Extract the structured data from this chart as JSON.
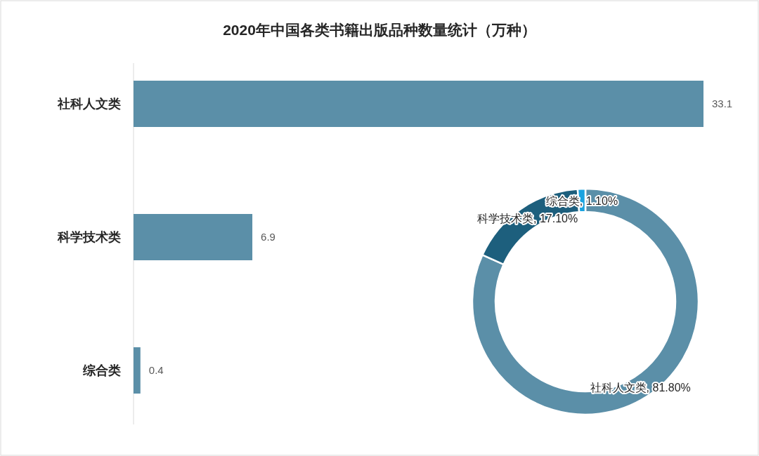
{
  "chart_data": [
    {
      "type": "bar",
      "orientation": "horizontal",
      "title": "2020年中国各类书籍出版品种数量统计（万种）",
      "categories": [
        "社科人文类",
        "科学技术类",
        "综合类"
      ],
      "values": [
        33.1,
        6.9,
        0.4
      ],
      "color": "#5b8fa8",
      "data_labels": true
    },
    {
      "type": "donut",
      "categories": [
        "社科人文类",
        "科学技术类",
        "综合类"
      ],
      "values": [
        81.8,
        17.1,
        1.1
      ],
      "colors": [
        "#5b8fa8",
        "#1d5f7d",
        "#1aa3e0"
      ],
      "value_labels": [
        "81.80%",
        "17.10%",
        "1.10%"
      ]
    }
  ]
}
